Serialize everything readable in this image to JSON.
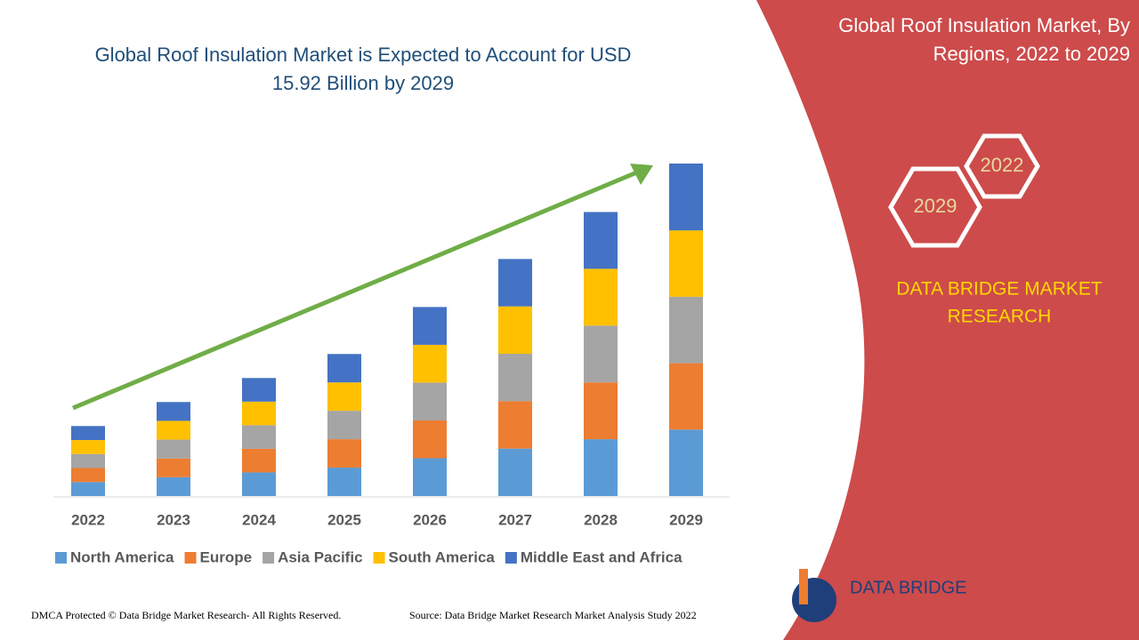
{
  "chart_data": {
    "type": "bar",
    "stacked": true,
    "title": "Global Roof Insulation Market is Expected to Account for USD 15.92 Billion by 2029",
    "categories": [
      "2022",
      "2023",
      "2024",
      "2025",
      "2026",
      "2027",
      "2028",
      "2029"
    ],
    "series": [
      {
        "name": "North America",
        "color": "#5b9bd5",
        "values": [
          0.67,
          0.9,
          1.13,
          1.36,
          1.81,
          2.27,
          2.72,
          3.18
        ]
      },
      {
        "name": "Europe",
        "color": "#ed7d31",
        "values": [
          0.67,
          0.9,
          1.13,
          1.36,
          1.81,
          2.27,
          2.72,
          3.18
        ]
      },
      {
        "name": "Asia Pacific",
        "color": "#a5a5a5",
        "values": [
          0.67,
          0.9,
          1.13,
          1.36,
          1.81,
          2.27,
          2.72,
          3.18
        ]
      },
      {
        "name": "South America",
        "color": "#ffc000",
        "values": [
          0.67,
          0.9,
          1.13,
          1.36,
          1.81,
          2.27,
          2.72,
          3.18
        ]
      },
      {
        "name": "Middle East and Africa",
        "color": "#4472c4",
        "values": [
          0.67,
          0.9,
          1.13,
          1.36,
          1.81,
          2.27,
          2.72,
          3.2
        ]
      }
    ]
  },
  "panel": {
    "title": "Global Roof Insulation Market, By Regions, 2022 to 2029",
    "badges": [
      "2022",
      "2029"
    ],
    "brand": "DATA BRIDGE MARKET RESEARCH",
    "logo": "DATA BRIDGE"
  },
  "footer": {
    "left": "DMCA Protected © Data Bridge Market Research- All Rights Reserved.",
    "right": "Source: Data Bridge Market Research Market Analysis Study 2022"
  }
}
